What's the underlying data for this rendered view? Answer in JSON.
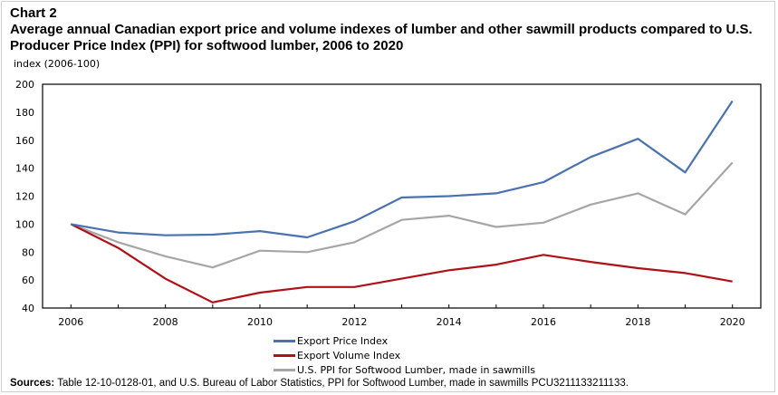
{
  "header": {
    "chart_number": "Chart 2",
    "title": "Average annual Canadian export price and volume indexes of lumber and other sawmill products compared to U.S. Producer Price Index (PPI) for softwood lumber, 2006 to 2020",
    "unit_label": "index (2006-100)"
  },
  "footer": {
    "sources_label": "Sources:",
    "sources_text": " Table 12-10-0128-01, and U.S. Bureau of Labor Statistics, PPI for Softwood Lumber, made in sawmills PCU3211133211133."
  },
  "chart_data": {
    "type": "line",
    "title": "Average annual Canadian export price and volume indexes of lumber and other sawmill products compared to U.S. Producer Price Index (PPI) for softwood lumber, 2006 to 2020",
    "xlabel": "",
    "ylabel": "index (2006-100)",
    "x": [
      2006,
      2007,
      2008,
      2009,
      2010,
      2011,
      2012,
      2013,
      2014,
      2015,
      2016,
      2017,
      2018,
      2019,
      2020
    ],
    "x_tick_labels": [
      "2006",
      "2008",
      "2010",
      "2012",
      "2014",
      "2016",
      "2018",
      "2020"
    ],
    "y_tick_labels": [
      "200",
      "180",
      "160",
      "140",
      "120",
      "100",
      "80",
      "60",
      "40"
    ],
    "ylim": [
      40,
      200
    ],
    "xlim": [
      2005.4,
      2020.6
    ],
    "grid": false,
    "legend_position": "bottom-center",
    "series": [
      {
        "name": "Export Price Index",
        "color": "#4a72b0",
        "values": [
          100,
          94,
          92,
          92.5,
          95,
          90.5,
          102,
          119,
          120,
          122,
          130,
          148,
          161,
          137,
          188
        ]
      },
      {
        "name": "Export Volume Index",
        "color": "#b01018",
        "values": [
          100,
          83,
          61,
          44,
          51,
          55,
          55,
          61,
          67,
          71,
          78,
          73,
          68.5,
          65,
          59
        ]
      },
      {
        "name": "U.S. PPI for Softwood Lumber, made in sawmills",
        "color": "#a6a6a6",
        "values": [
          100,
          87,
          77,
          69,
          81,
          80,
          87,
          103,
          106,
          98,
          101,
          114,
          122,
          107,
          144
        ]
      }
    ]
  }
}
